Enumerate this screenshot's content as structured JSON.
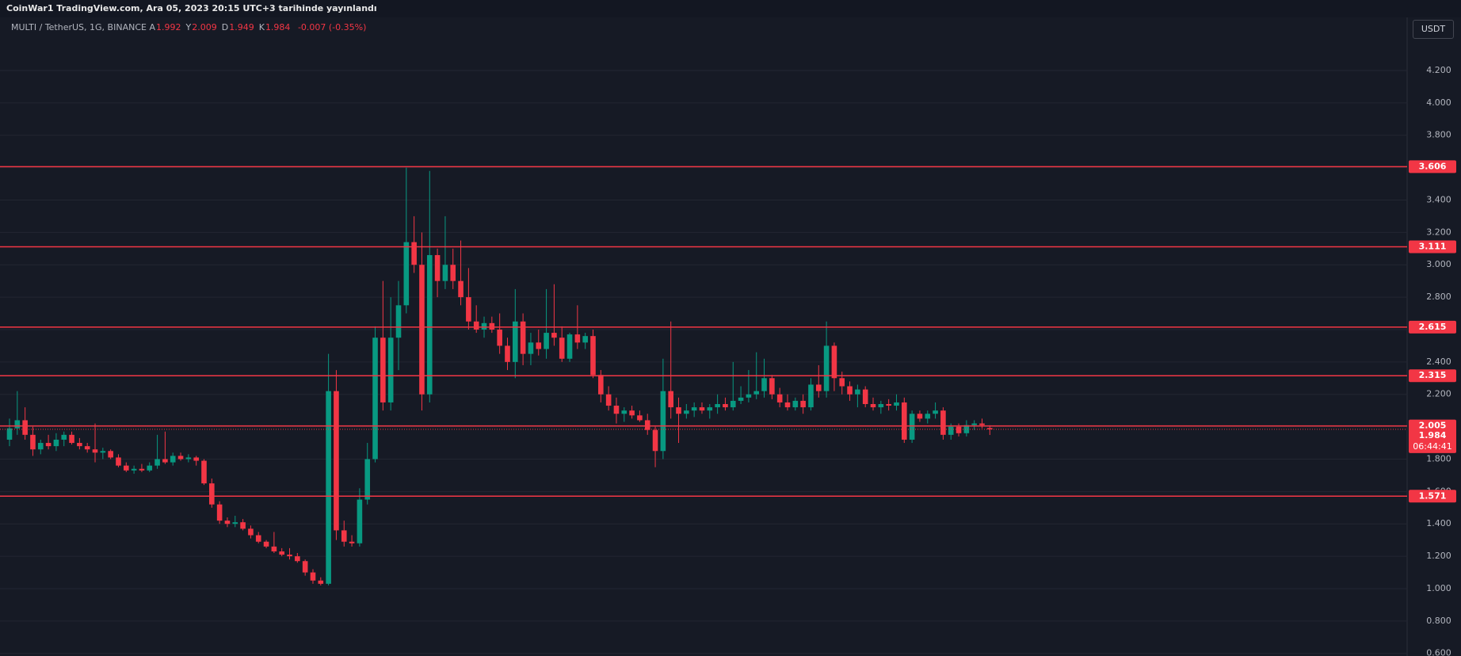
{
  "header": "CoinWar1 TradingView.com, Ara 05, 2023 20:15 UTC+3 tarihinde yayınlandı",
  "legend": {
    "symbol": "MULTI / TetherUS, 1G, BINANCE",
    "fields": [
      {
        "key": "A",
        "value": 1.992
      },
      {
        "key": "Y",
        "value": 2.009
      },
      {
        "key": "D",
        "value": 1.949
      },
      {
        "key": "K",
        "value": 1.984
      }
    ],
    "change": "-0.007 (-0.35%)"
  },
  "chart_data": {
    "type": "candlestick",
    "unit": "USDT",
    "up_color": "#089981",
    "down_color": "#f23645",
    "level_color": "#f23645",
    "ylim": [
      0.584,
      4.518
    ],
    "yticks": [
      {
        "value": 0.6,
        "label": "0.600"
      },
      {
        "value": 0.8,
        "label": "0.800"
      },
      {
        "value": 1.0,
        "label": "1.000"
      },
      {
        "value": 1.2,
        "label": "1.200"
      },
      {
        "value": 1.4,
        "label": "1.400"
      },
      {
        "value": 1.6,
        "label": "1.600"
      },
      {
        "value": 1.8,
        "label": "1.800"
      },
      {
        "value": 2.0,
        "label": "2.000"
      },
      {
        "value": 2.2,
        "label": "2.200"
      },
      {
        "value": 2.4,
        "label": "2.400"
      },
      {
        "value": 2.6,
        "label": "2.600"
      },
      {
        "value": 2.8,
        "label": "2.800"
      },
      {
        "value": 3.0,
        "label": "3.000"
      },
      {
        "value": 3.2,
        "label": "3.200"
      },
      {
        "value": 3.4,
        "label": "3.400"
      },
      {
        "value": 3.6,
        "label": "3.600"
      },
      {
        "value": 3.8,
        "label": "3.800"
      },
      {
        "value": 4.0,
        "label": "4.000"
      },
      {
        "value": 4.2,
        "label": "4.200"
      }
    ],
    "grid": true,
    "levels": [
      3.606,
      3.111,
      2.615,
      2.315,
      2.005,
      1.571
    ],
    "last_price": 1.984,
    "countdown": "06:44:41",
    "ohlc": [
      [
        1.92,
        2.05,
        1.88,
        1.99
      ],
      [
        1.99,
        2.22,
        1.95,
        2.04
      ],
      [
        2.04,
        2.12,
        1.92,
        1.95
      ],
      [
        1.95,
        2.0,
        1.82,
        1.86
      ],
      [
        1.86,
        1.92,
        1.83,
        1.9
      ],
      [
        1.9,
        1.95,
        1.86,
        1.88
      ],
      [
        1.88,
        1.96,
        1.85,
        1.92
      ],
      [
        1.92,
        1.97,
        1.88,
        1.95
      ],
      [
        1.95,
        1.97,
        1.89,
        1.9
      ],
      [
        1.9,
        1.93,
        1.86,
        1.88
      ],
      [
        1.88,
        1.9,
        1.84,
        1.86
      ],
      [
        1.86,
        2.02,
        1.78,
        1.84
      ],
      [
        1.84,
        1.87,
        1.8,
        1.85
      ],
      [
        1.85,
        1.86,
        1.8,
        1.81
      ],
      [
        1.81,
        1.83,
        1.75,
        1.76
      ],
      [
        1.76,
        1.78,
        1.72,
        1.73
      ],
      [
        1.73,
        1.76,
        1.71,
        1.74
      ],
      [
        1.74,
        1.77,
        1.72,
        1.73
      ],
      [
        1.73,
        1.78,
        1.72,
        1.76
      ],
      [
        1.76,
        1.95,
        1.74,
        1.8
      ],
      [
        1.8,
        1.97,
        1.77,
        1.78
      ],
      [
        1.78,
        1.84,
        1.76,
        1.82
      ],
      [
        1.82,
        1.84,
        1.79,
        1.8
      ],
      [
        1.8,
        1.83,
        1.78,
        1.81
      ],
      [
        1.81,
        1.82,
        1.76,
        1.79
      ],
      [
        1.79,
        1.8,
        1.64,
        1.65
      ],
      [
        1.65,
        1.68,
        1.5,
        1.52
      ],
      [
        1.52,
        1.54,
        1.4,
        1.42
      ],
      [
        1.42,
        1.44,
        1.38,
        1.4
      ],
      [
        1.4,
        1.45,
        1.38,
        1.41
      ],
      [
        1.41,
        1.43,
        1.36,
        1.37
      ],
      [
        1.37,
        1.39,
        1.31,
        1.33
      ],
      [
        1.33,
        1.35,
        1.28,
        1.29
      ],
      [
        1.29,
        1.3,
        1.25,
        1.26
      ],
      [
        1.26,
        1.35,
        1.22,
        1.23
      ],
      [
        1.23,
        1.25,
        1.2,
        1.21
      ],
      [
        1.21,
        1.25,
        1.18,
        1.2
      ],
      [
        1.2,
        1.22,
        1.16,
        1.17
      ],
      [
        1.17,
        1.18,
        1.08,
        1.1
      ],
      [
        1.1,
        1.12,
        1.03,
        1.05
      ],
      [
        1.05,
        1.07,
        1.02,
        1.03
      ],
      [
        1.03,
        2.45,
        1.02,
        2.22
      ],
      [
        2.22,
        2.35,
        1.3,
        1.36
      ],
      [
        1.36,
        1.42,
        1.26,
        1.29
      ],
      [
        1.29,
        1.33,
        1.26,
        1.28
      ],
      [
        1.28,
        1.62,
        1.26,
        1.55
      ],
      [
        1.55,
        1.9,
        1.52,
        1.8
      ],
      [
        1.8,
        2.62,
        1.78,
        2.55
      ],
      [
        2.55,
        2.9,
        2.1,
        2.15
      ],
      [
        2.15,
        2.8,
        2.1,
        2.55
      ],
      [
        2.55,
        2.9,
        2.35,
        2.75
      ],
      [
        2.75,
        3.6,
        2.7,
        3.14
      ],
      [
        3.14,
        3.3,
        2.95,
        3.0
      ],
      [
        3.0,
        3.2,
        2.1,
        2.2
      ],
      [
        2.2,
        3.58,
        2.15,
        3.06
      ],
      [
        3.06,
        3.1,
        2.8,
        2.9
      ],
      [
        2.9,
        3.3,
        2.85,
        3.0
      ],
      [
        3.0,
        3.1,
        2.85,
        2.9
      ],
      [
        2.9,
        3.15,
        2.75,
        2.8
      ],
      [
        2.8,
        2.98,
        2.6,
        2.65
      ],
      [
        2.65,
        2.75,
        2.58,
        2.6
      ],
      [
        2.6,
        2.68,
        2.55,
        2.64
      ],
      [
        2.64,
        2.68,
        2.58,
        2.6
      ],
      [
        2.6,
        2.7,
        2.45,
        2.5
      ],
      [
        2.5,
        2.55,
        2.35,
        2.4
      ],
      [
        2.4,
        2.85,
        2.3,
        2.65
      ],
      [
        2.65,
        2.7,
        2.38,
        2.45
      ],
      [
        2.45,
        2.58,
        2.38,
        2.52
      ],
      [
        2.52,
        2.6,
        2.44,
        2.48
      ],
      [
        2.48,
        2.85,
        2.42,
        2.58
      ],
      [
        2.58,
        2.88,
        2.5,
        2.55
      ],
      [
        2.55,
        2.62,
        2.4,
        2.42
      ],
      [
        2.42,
        2.58,
        2.4,
        2.57
      ],
      [
        2.57,
        2.75,
        2.48,
        2.52
      ],
      [
        2.52,
        2.58,
        2.48,
        2.56
      ],
      [
        2.56,
        2.6,
        2.3,
        2.32
      ],
      [
        2.32,
        2.35,
        2.15,
        2.2
      ],
      [
        2.2,
        2.25,
        2.1,
        2.13
      ],
      [
        2.13,
        2.18,
        2.02,
        2.08
      ],
      [
        2.08,
        2.12,
        2.03,
        2.1
      ],
      [
        2.1,
        2.13,
        2.05,
        2.07
      ],
      [
        2.07,
        2.1,
        2.03,
        2.04
      ],
      [
        2.04,
        2.08,
        1.95,
        1.98
      ],
      [
        1.98,
        2.0,
        1.75,
        1.85
      ],
      [
        1.85,
        2.42,
        1.8,
        2.22
      ],
      [
        2.22,
        2.65,
        2.05,
        2.12
      ],
      [
        2.12,
        2.18,
        1.9,
        2.08
      ],
      [
        2.08,
        2.14,
        2.05,
        2.1
      ],
      [
        2.1,
        2.15,
        2.06,
        2.12
      ],
      [
        2.12,
        2.15,
        2.08,
        2.1
      ],
      [
        2.1,
        2.14,
        2.05,
        2.12
      ],
      [
        2.12,
        2.2,
        2.08,
        2.14
      ],
      [
        2.14,
        2.18,
        2.1,
        2.12
      ],
      [
        2.12,
        2.4,
        2.1,
        2.16
      ],
      [
        2.16,
        2.25,
        2.14,
        2.18
      ],
      [
        2.18,
        2.35,
        2.15,
        2.2
      ],
      [
        2.2,
        2.46,
        2.17,
        2.22
      ],
      [
        2.22,
        2.42,
        2.18,
        2.3
      ],
      [
        2.3,
        2.32,
        2.17,
        2.2
      ],
      [
        2.2,
        2.24,
        2.12,
        2.15
      ],
      [
        2.15,
        2.2,
        2.1,
        2.12
      ],
      [
        2.12,
        2.18,
        2.1,
        2.16
      ],
      [
        2.16,
        2.2,
        2.08,
        2.12
      ],
      [
        2.12,
        2.3,
        2.1,
        2.26
      ],
      [
        2.26,
        2.38,
        2.18,
        2.22
      ],
      [
        2.22,
        2.65,
        2.18,
        2.5
      ],
      [
        2.5,
        2.52,
        2.22,
        2.3
      ],
      [
        2.3,
        2.34,
        2.2,
        2.25
      ],
      [
        2.25,
        2.28,
        2.16,
        2.2
      ],
      [
        2.2,
        2.26,
        2.12,
        2.23
      ],
      [
        2.23,
        2.25,
        2.12,
        2.14
      ],
      [
        2.14,
        2.18,
        2.1,
        2.12
      ],
      [
        2.12,
        2.16,
        2.08,
        2.14
      ],
      [
        2.14,
        2.17,
        2.1,
        2.13
      ],
      [
        2.13,
        2.2,
        2.1,
        2.15
      ],
      [
        2.15,
        2.18,
        1.9,
        1.92
      ],
      [
        1.92,
        2.1,
        1.9,
        2.08
      ],
      [
        2.08,
        2.1,
        2.03,
        2.05
      ],
      [
        2.05,
        2.1,
        2.02,
        2.08
      ],
      [
        2.08,
        2.15,
        2.05,
        2.1
      ],
      [
        2.1,
        2.12,
        1.92,
        1.95
      ],
      [
        1.95,
        2.02,
        1.92,
        2.0
      ],
      [
        2.0,
        2.02,
        1.94,
        1.96
      ],
      [
        1.96,
        2.04,
        1.94,
        2.01
      ],
      [
        2.01,
        2.04,
        1.98,
        2.02
      ],
      [
        2.02,
        2.05,
        1.99,
        2.01
      ],
      [
        1.992,
        2.009,
        1.949,
        1.984
      ]
    ]
  }
}
